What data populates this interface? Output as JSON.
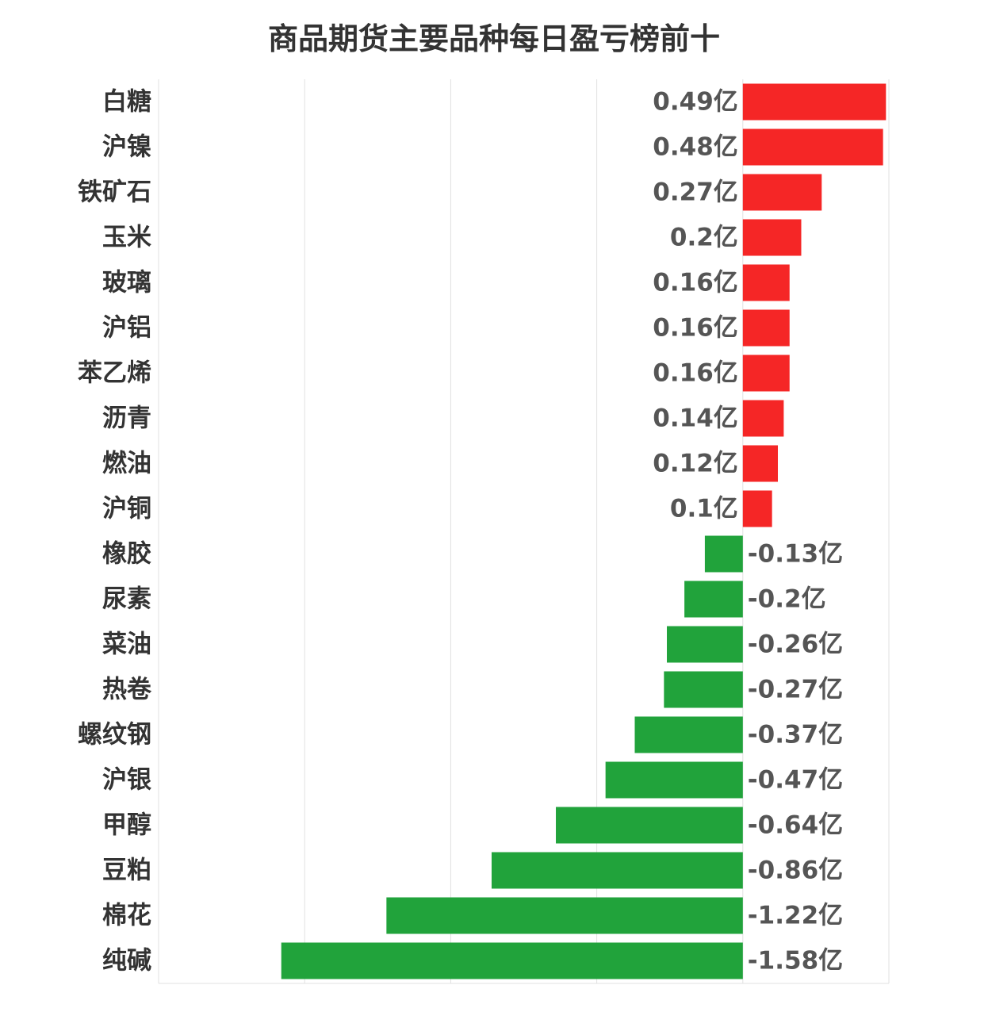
{
  "chart_data": {
    "type": "bar",
    "orientation": "horizontal",
    "title": "商品期货主要品种每日盈亏榜前十",
    "xlabel": "",
    "ylabel": "",
    "unit": "亿",
    "xlim": [
      -2.0,
      0.5
    ],
    "grid": true,
    "categories": [
      "白糖",
      "沪镍",
      "铁矿石",
      "玉米",
      "玻璃",
      "沪铝",
      "苯乙烯",
      "沥青",
      "燃油",
      "沪铜",
      "橡胶",
      "尿素",
      "菜油",
      "热卷",
      "螺纹钢",
      "沪银",
      "甲醇",
      "豆粕",
      "棉花",
      "纯碱"
    ],
    "values": [
      0.49,
      0.48,
      0.27,
      0.2,
      0.16,
      0.16,
      0.16,
      0.14,
      0.12,
      0.1,
      -0.13,
      -0.2,
      -0.26,
      -0.27,
      -0.37,
      -0.47,
      -0.64,
      -0.86,
      -1.22,
      -1.58
    ],
    "labels": [
      "0.49亿",
      "0.48亿",
      "0.27亿",
      "0.2亿",
      "0.16亿",
      "0.16亿",
      "0.16亿",
      "0.14亿",
      "0.12亿",
      "0.1亿",
      "-0.13亿",
      "-0.2亿",
      "-0.26亿",
      "-0.27亿",
      "-0.37亿",
      "-0.47亿",
      "-0.64亿",
      "-0.86亿",
      "-1.22亿",
      "-1.58亿"
    ],
    "colors": {
      "positive": "#f52626",
      "negative": "#21a33b",
      "grid": "#e0e0e0",
      "text": "#333333",
      "value_text": "#555555"
    }
  }
}
